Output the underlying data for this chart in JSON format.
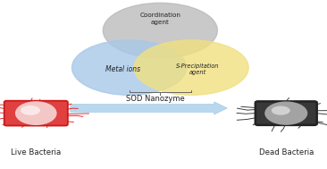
{
  "blue_circle_color": "#a8c8e8",
  "yellow_circle_color": "#f0e080",
  "gray_circle_color": "#b8b8b8",
  "metal_ions_label": "Metal ions",
  "s_precip_label": "S-Precipitation\nagent",
  "coord_label": "Coordination\nagent",
  "sod_label": "SOD Nanozyme",
  "live_label": "Live Bacteria",
  "dead_label": "Dead Bacteria",
  "arrow_color": "#b8d8f0",
  "live_body_color": "#e04040",
  "live_body_outer": "#cc1818",
  "live_inner_color": "#f8d0d0",
  "dead_body_color": "#484848",
  "dead_body_outer": "#222222",
  "dead_inner_color": "#cccccc",
  "bracket_color": "#666666",
  "background_color": "#ffffff",
  "text_color": "#222222",
  "flagella_live_color": "#dd2222",
  "flagella_dead_color": "#333333"
}
